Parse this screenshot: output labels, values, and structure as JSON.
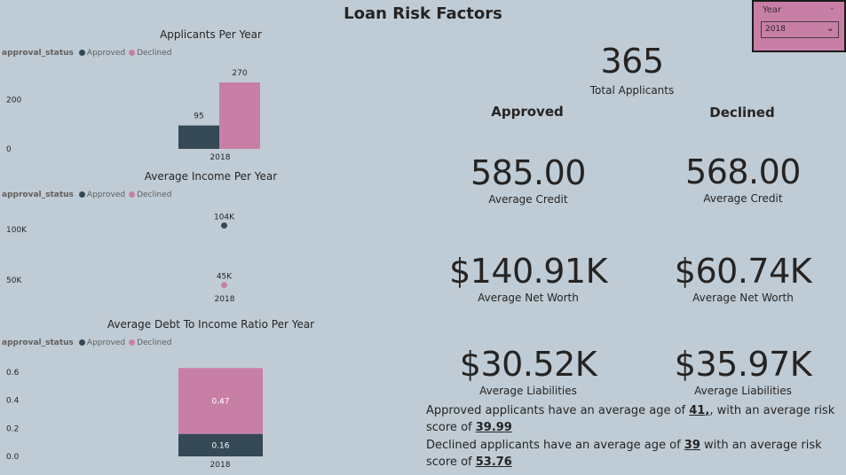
{
  "title": "Loan Risk Factors",
  "slicer": {
    "title": "Year",
    "value": "2018"
  },
  "legend": {
    "title": "approval_status",
    "approved": "Approved",
    "declined": "Declined"
  },
  "colors": {
    "approved": "#344855",
    "declined": "#c77fa6",
    "background": "#c0ccd5"
  },
  "total": {
    "value": "365",
    "label": "Total Applicants"
  },
  "approved": {
    "heading": "Approved",
    "credit": {
      "value": "585.00",
      "label": "Average Credit"
    },
    "net_worth": {
      "value": "$140.91K",
      "label": "Average Net Worth"
    },
    "liabilities": {
      "value": "$30.52K",
      "label": "Average Liabilities"
    }
  },
  "declined": {
    "heading": "Declined",
    "credit": {
      "value": "568.00",
      "label": "Average Credit"
    },
    "net_worth": {
      "value": "$60.74K",
      "label": "Average Net Worth"
    },
    "liabilities": {
      "value": "$35.97K",
      "label": "Average Liabilities"
    }
  },
  "summary": {
    "approved_prefix": "Approved applicants have an average age of ",
    "approved_age": "41",
    "approved_mid": ", with an average risk score of ",
    "approved_risk": "39.99",
    "declined_prefix": "Declined applicants have an average age of ",
    "declined_age": "39",
    "declined_mid": " with an average risk score of ",
    "declined_risk": "53.76"
  },
  "chart_data": [
    {
      "type": "bar",
      "title": "Applicants Per Year",
      "categories": [
        "2018"
      ],
      "series": [
        {
          "name": "Approved",
          "values": [
            95
          ],
          "labels": [
            "95"
          ]
        },
        {
          "name": "Declined",
          "values": [
            270
          ],
          "labels": [
            "270"
          ]
        }
      ],
      "yticks": [
        0,
        200
      ],
      "ytick_labels": [
        "0",
        "200"
      ],
      "ylim": [
        0,
        270
      ],
      "legend_position": "top-left"
    },
    {
      "type": "scatter",
      "title": "Average Income Per Year",
      "categories": [
        "2018"
      ],
      "series": [
        {
          "name": "Approved",
          "values": [
            104000
          ],
          "labels": [
            "104K"
          ]
        },
        {
          "name": "Declined",
          "values": [
            45000
          ],
          "labels": [
            "45K"
          ]
        }
      ],
      "yticks": [
        50000,
        100000
      ],
      "ytick_labels": [
        "50K",
        "100K"
      ],
      "ylim": [
        40000,
        110000
      ],
      "legend_position": "top-left"
    },
    {
      "type": "bar",
      "stacked": true,
      "title": "Average Debt To Income Ratio Per Year",
      "categories": [
        "2018"
      ],
      "series": [
        {
          "name": "Approved",
          "values": [
            0.16
          ],
          "labels": [
            "0.16"
          ]
        },
        {
          "name": "Declined",
          "values": [
            0.47
          ],
          "labels": [
            "0.47"
          ]
        }
      ],
      "yticks": [
        0,
        0.2,
        0.4,
        0.6
      ],
      "ytick_labels": [
        "0.0",
        "0.2",
        "0.4",
        "0.6"
      ],
      "ylim": [
        0,
        0.63
      ],
      "legend_position": "top-left"
    }
  ]
}
